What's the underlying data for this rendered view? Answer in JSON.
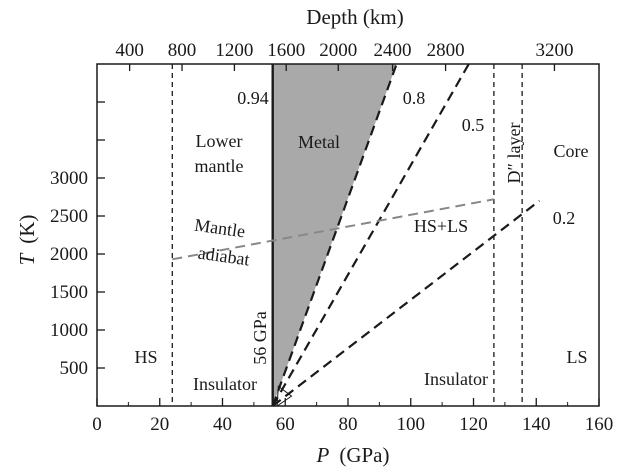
{
  "chart_data": {
    "type": "line",
    "xlabel": {
      "var": "P",
      "unit": "(GPa)"
    },
    "ylabel": {
      "var": "T",
      "unit": "(K)"
    },
    "top_axis_label": "Depth (km)",
    "xlim": [
      0,
      160
    ],
    "ylim": [
      0,
      4500
    ],
    "x_ticks": [
      0,
      20,
      40,
      60,
      80,
      100,
      120,
      140,
      160
    ],
    "y_ticks": [
      500,
      1000,
      1500,
      2000,
      2500,
      3000
    ],
    "top_ticks": [
      {
        "label": "400",
        "p": 10.4
      },
      {
        "label": "800",
        "p": 27.1
      },
      {
        "label": "1200",
        "p": 43.8
      },
      {
        "label": "1600",
        "p": 60.3
      },
      {
        "label": "2000",
        "p": 76.9
      },
      {
        "label": "2400",
        "p": 94.2
      },
      {
        "label": "2800",
        "p": 111.1
      },
      {
        "label": "3200",
        "p": 145.8
      }
    ],
    "metal_region": {
      "vertices": [
        [
          56,
          0
        ],
        [
          56,
          4500
        ],
        [
          95.5,
          4500
        ]
      ],
      "color": "#a9a9a9"
    },
    "boundaries": [
      {
        "p": 24,
        "style": "dashed"
      },
      {
        "p": 56,
        "style": "solid",
        "label": "56 GPa"
      },
      {
        "p": 126.5,
        "style": "dashed"
      },
      {
        "p": 135.5,
        "style": "dashed"
      }
    ],
    "series": [
      {
        "name": "0.94",
        "points": [
          [
            56,
            0
          ],
          [
            56,
            4500
          ]
        ],
        "style": "solid",
        "color": "#1a1a1a"
      },
      {
        "name": "0.8",
        "points": [
          [
            56,
            0
          ],
          [
            95.5,
            4500
          ]
        ],
        "style": "dashed",
        "color": "#1a1a1a"
      },
      {
        "name": "0.5",
        "points": [
          [
            56,
            0
          ],
          [
            118.5,
            4500
          ]
        ],
        "style": "dashed",
        "color": "#1a1a1a"
      },
      {
        "name": "0.2",
        "points": [
          [
            56,
            0
          ],
          [
            141,
            2700
          ]
        ],
        "style": "dashed",
        "color": "#1a1a1a"
      },
      {
        "name": "Mantle adiabat",
        "points": [
          [
            24,
            1930
          ],
          [
            126.5,
            2720
          ]
        ],
        "style": "dashed",
        "color": "#888888"
      }
    ],
    "region_labels": {
      "lower_mantle": [
        "Lower",
        "mantle"
      ],
      "metal": "Metal",
      "core": "Core",
      "hs_ls": "HS+LS",
      "hs": "HS",
      "ls": "LS",
      "insulator": "Insulator",
      "d_layer": "D″ layer",
      "adiabat": [
        "Mantle",
        "adiabat"
      ]
    }
  }
}
